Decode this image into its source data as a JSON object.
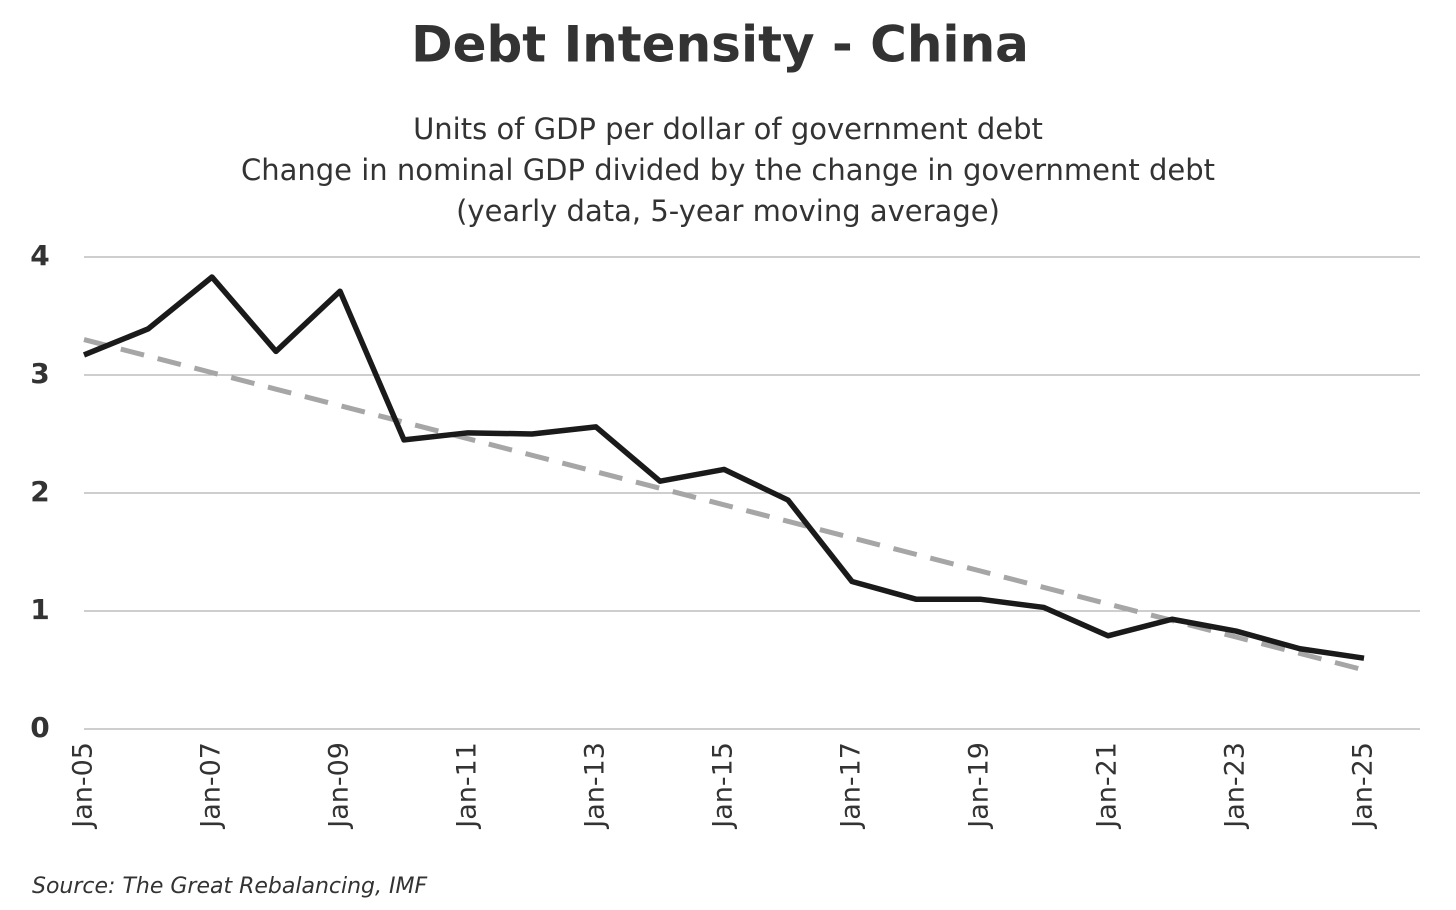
{
  "chart_data": {
    "type": "line",
    "title": "Debt Intensity - China",
    "subtitle": [
      "Units of GDP per dollar of government debt",
      "Change in nominal GDP divided by the change in government debt",
      "(yearly data, 5-year moving average)"
    ],
    "source": "Source: The Great Rebalancing, IMF",
    "categories": [
      "Jan-05",
      null,
      "Jan-07",
      null,
      "Jan-09",
      null,
      "Jan-11",
      null,
      "Jan-13",
      null,
      "Jan-15",
      null,
      "Jan-17",
      null,
      "Jan-19",
      null,
      "Jan-21",
      null,
      "Jan-23",
      null,
      "Jan-25"
    ],
    "series": [
      {
        "color": "#1a1a1a",
        "dashed": false,
        "values": [
          3.17,
          3.39,
          3.83,
          3.2,
          3.71,
          2.45,
          2.51,
          2.5,
          2.56,
          2.1,
          2.2,
          1.94,
          1.25,
          1.1,
          1.1,
          1.03,
          0.79,
          0.93,
          0.83,
          0.68,
          0.6
        ]
      },
      {
        "color": "#a6a6a6",
        "dashed": true,
        "values": [
          3.3,
          3.16,
          3.02,
          2.88,
          2.74,
          2.6,
          2.46,
          2.32,
          2.18,
          2.04,
          1.9,
          1.76,
          1.62,
          1.48,
          1.34,
          1.2,
          1.06,
          0.92,
          0.78,
          0.64,
          0.5
        ]
      }
    ],
    "ylim": [
      0,
      4
    ],
    "yticks": [
      0,
      1,
      2,
      3,
      4
    ],
    "grid": true
  }
}
